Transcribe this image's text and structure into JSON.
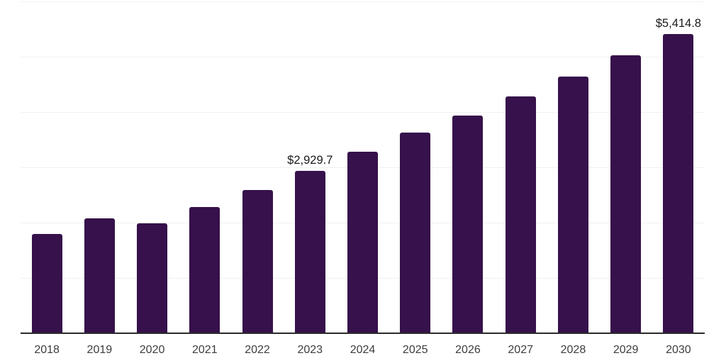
{
  "chart_data": {
    "type": "bar",
    "categories": [
      "2018",
      "2019",
      "2020",
      "2021",
      "2022",
      "2023",
      "2024",
      "2025",
      "2026",
      "2027",
      "2028",
      "2029",
      "2030"
    ],
    "values": [
      1795,
      2075,
      1985,
      2280,
      2590,
      2929.7,
      3280,
      3625,
      3935,
      4280,
      4640,
      5025,
      5414.8
    ],
    "data_labels": [
      "",
      "",
      "",
      "",
      "",
      "$2,929.7",
      "",
      "",
      "",
      "",
      "",
      "",
      "$5,414.8"
    ],
    "title": "",
    "xlabel": "",
    "ylabel": "",
    "ylim": [
      0,
      6000
    ],
    "grid": {
      "visible": true,
      "interval": 1000,
      "color": "#f0f0f0"
    },
    "legend": "none",
    "colors": {
      "bar": "#36114B",
      "axis_line": "#2b2b2b",
      "tick_label": "#3d3d3d",
      "data_label": "#1a1a1a",
      "background": "#ffffff"
    }
  }
}
